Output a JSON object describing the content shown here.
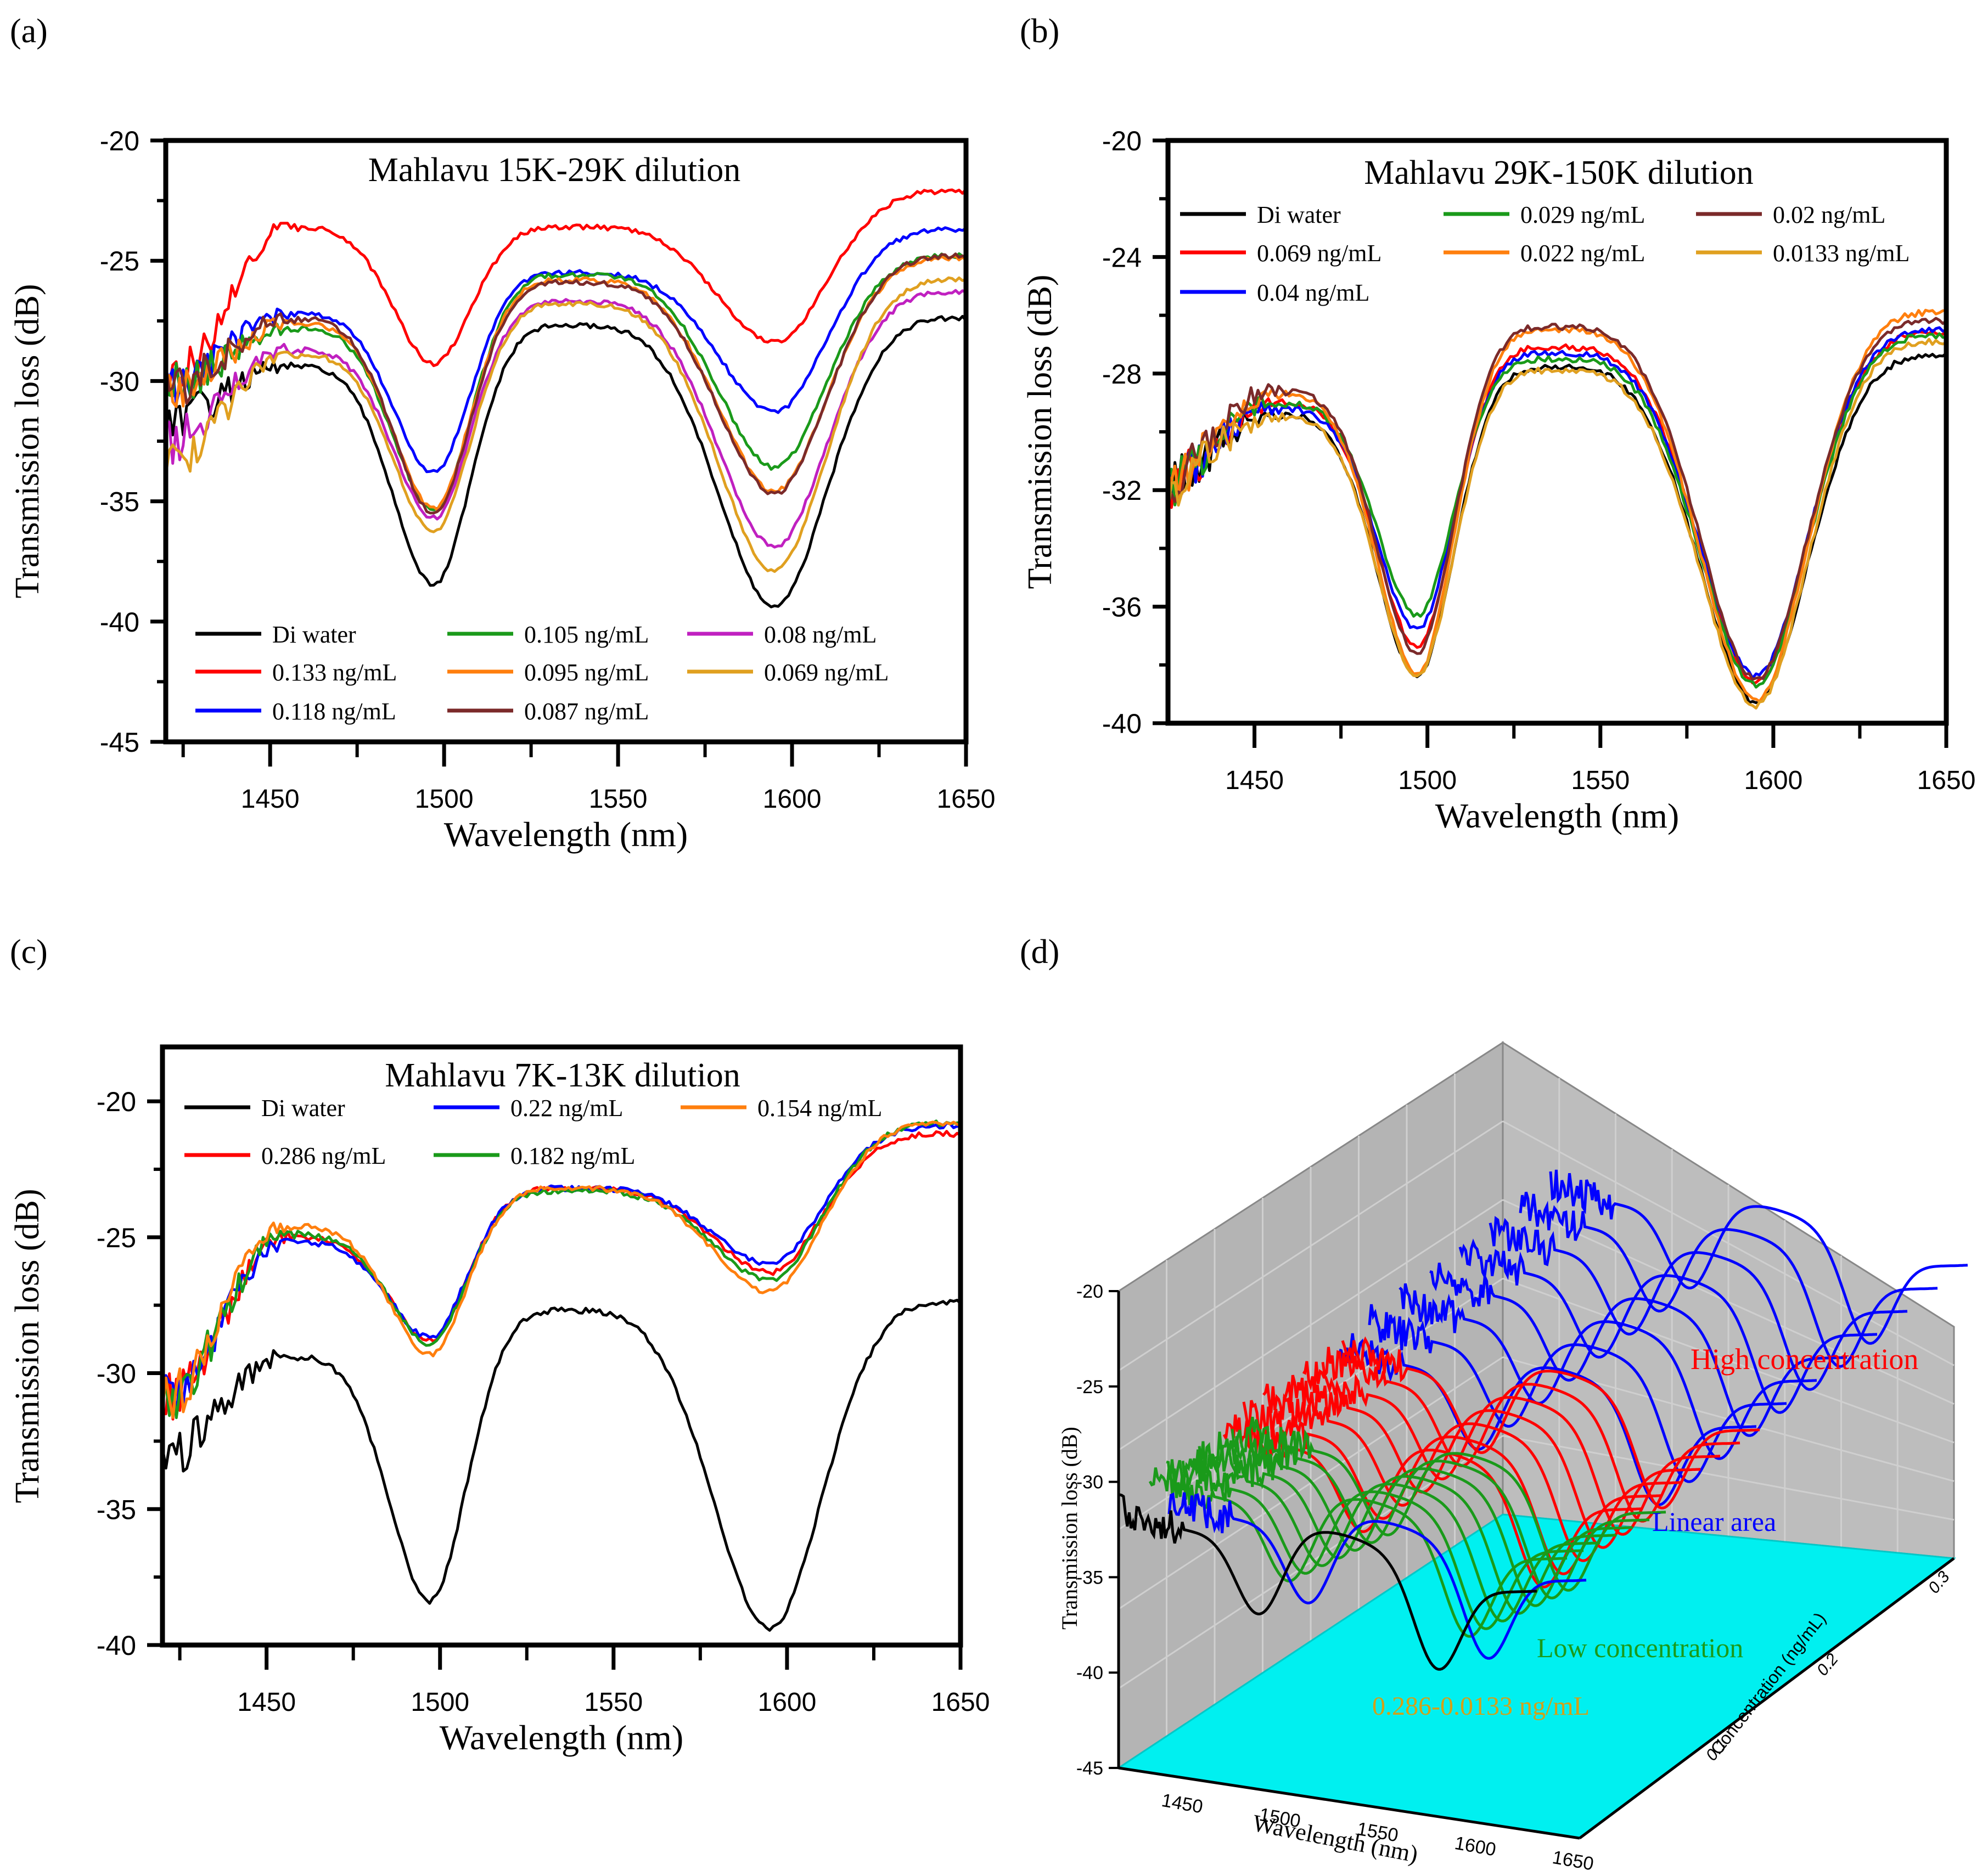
{
  "panel_labels": {
    "a": "(a)",
    "b": "(b)",
    "c": "(c)",
    "d": "(d)"
  },
  "chart_data": [
    {
      "panel": "(a)",
      "type": "line",
      "title": "Mahlavu 15K-29K dilution",
      "xlabel": "Wavelength (nm)",
      "ylabel": "Transmission loss (dB)",
      "xlim": [
        1420,
        1650
      ],
      "ylim": [
        -45,
        -20
      ],
      "xticks": [
        "1450",
        "1500",
        "1550",
        "1600",
        "1650"
      ],
      "yticks": [
        "-20",
        "-25",
        "-30",
        "-35",
        "-40",
        "-45"
      ],
      "series": [
        {
          "name": "Di water",
          "color": "#000000",
          "start": -31.5,
          "p1": -29.4,
          "d1": -38.5,
          "p2": -27.7,
          "d2": -39.4,
          "end": -27.4
        },
        {
          "name": "0.133 ng/mL",
          "color": "#ff0000",
          "start": -30.0,
          "p1": -23.6,
          "d1": -29.3,
          "p2": -23.6,
          "d2": -28.4,
          "end": -22.1
        },
        {
          "name": "0.118 ng/mL",
          "color": "#0000ff",
          "start": -30.2,
          "p1": -27.2,
          "d1": -33.8,
          "p2": -25.5,
          "d2": -31.3,
          "end": -23.7
        },
        {
          "name": "0.105 ng/mL",
          "color": "#1a9a1a",
          "start": -30.2,
          "p1": -27.8,
          "d1": -35.4,
          "p2": -25.6,
          "d2": -33.6,
          "end": -24.8
        },
        {
          "name": "0.095 ng/mL",
          "color": "#ff7f0e",
          "start": -30.5,
          "p1": -27.6,
          "d1": -35.3,
          "p2": -25.8,
          "d2": -34.6,
          "end": -24.9
        },
        {
          "name": "0.087 ng/mL",
          "color": "#7b2a2a",
          "start": -30.3,
          "p1": -27.4,
          "d1": -35.5,
          "p2": -25.9,
          "d2": -34.7,
          "end": -24.8
        },
        {
          "name": "0.08 ng/mL",
          "color": "#c020c0",
          "start": -32.5,
          "p1": -28.7,
          "d1": -35.7,
          "p2": -26.7,
          "d2": -36.9,
          "end": -26.3
        },
        {
          "name": "0.069 ng/mL",
          "color": "#e0a020",
          "start": -33.5,
          "p1": -28.9,
          "d1": -36.3,
          "p2": -26.8,
          "d2": -37.9,
          "end": -25.8
        }
      ]
    },
    {
      "panel": "(b)",
      "type": "line",
      "title": "Mahlavu 29K-150K dilution",
      "xlabel": "Wavelength (nm)",
      "ylabel": "Transmission loss (dB)",
      "xlim": [
        1425,
        1650
      ],
      "ylim": [
        -40,
        -20
      ],
      "xticks": [
        "1450",
        "1500",
        "1550",
        "1600",
        "1650"
      ],
      "yticks": [
        "-20",
        "-24",
        "-28",
        "-32",
        "-36",
        "-40"
      ],
      "series": [
        {
          "name": "Di water",
          "color": "#000000",
          "start": -32.0,
          "p1": -29.4,
          "d1": -38.4,
          "p2": -27.8,
          "d2": -39.3,
          "end": -27.4
        },
        {
          "name": "0.069 ng/mL",
          "color": "#ff0000",
          "start": -32.0,
          "p1": -29.0,
          "d1": -37.4,
          "p2": -27.1,
          "d2": -38.6,
          "end": -26.6
        },
        {
          "name": "0.04 ng/mL",
          "color": "#0000ff",
          "start": -32.0,
          "p1": -29.2,
          "d1": -36.8,
          "p2": -27.3,
          "d2": -38.4,
          "end": -26.5
        },
        {
          "name": "0.029 ng/mL",
          "color": "#1a9a1a",
          "start": -32.0,
          "p1": -29.0,
          "d1": -36.3,
          "p2": -27.5,
          "d2": -38.7,
          "end": -26.7
        },
        {
          "name": "0.022 ng/mL",
          "color": "#ff7f0e",
          "start": -32.0,
          "p1": -28.7,
          "d1": -38.3,
          "p2": -26.5,
          "d2": -39.2,
          "end": -25.9
        },
        {
          "name": "0.02 ng/mL",
          "color": "#7b2a2a",
          "start": -32.0,
          "p1": -28.6,
          "d1": -37.6,
          "p2": -26.4,
          "d2": -38.5,
          "end": -26.2
        },
        {
          "name": "0.0133 ng/mL",
          "color": "#e0a020",
          "start": -32.0,
          "p1": -29.5,
          "d1": -38.4,
          "p2": -27.9,
          "d2": -39.4,
          "end": -26.9
        }
      ]
    },
    {
      "panel": "(c)",
      "type": "line",
      "title": "Mahlavu 7K-13K dilution",
      "xlabel": "Wavelength (nm)",
      "ylabel": "Transmission loss (dB)",
      "xlim": [
        1420,
        1650
      ],
      "ylim": [
        -40,
        -18
      ],
      "xticks": [
        "1450",
        "1500",
        "1550",
        "1600",
        "1650"
      ],
      "yticks": [
        "-20",
        "-25",
        "-30",
        "-35",
        "-40"
      ],
      "series": [
        {
          "name": "Di water",
          "color": "#000000",
          "start": -33.0,
          "p1": -29.4,
          "d1": -38.4,
          "p2": -27.7,
          "d2": -39.4,
          "end": -27.4
        },
        {
          "name": "0.286 ng/mL",
          "color": "#ff0000",
          "start": -31.0,
          "p1": -25.0,
          "d1": -28.8,
          "p2": -23.2,
          "d2": -26.3,
          "end": -21.2
        },
        {
          "name": "0.22 ng/mL",
          "color": "#0000ff",
          "start": -31.0,
          "p1": -25.2,
          "d1": -28.7,
          "p2": -23.2,
          "d2": -26.0,
          "end": -20.9
        },
        {
          "name": "0.182 ng/mL",
          "color": "#1a9a1a",
          "start": -31.0,
          "p1": -24.9,
          "d1": -28.9,
          "p2": -23.3,
          "d2": -26.6,
          "end": -20.8
        },
        {
          "name": "0.154 ng/mL",
          "color": "#ff7f0e",
          "start": -31.0,
          "p1": -24.6,
          "d1": -29.3,
          "p2": -23.2,
          "d2": -27.0,
          "end": -20.8
        }
      ]
    },
    {
      "panel": "(d)",
      "type": "line",
      "chart_style": "3d-waterfall",
      "xlabel": "Wavelength (nm)",
      "ylabel": "Concentration (ng/mL)",
      "zlabel": "Transmission loss (dB)",
      "xticks": [
        "1450",
        "1500",
        "1550",
        "1600",
        "1650"
      ],
      "yticks": [
        "0.1",
        "0.2",
        "0.3"
      ],
      "zticks": [
        "-20",
        "-25",
        "-30",
        "-35",
        "-40",
        "-45"
      ],
      "annotations": [
        {
          "text": "High concentration",
          "color": "#ff0000"
        },
        {
          "text": "Linear area",
          "color": "#0000ff"
        },
        {
          "text": "Low concentration",
          "color": "#1a9a1a"
        },
        {
          "text": "0.286-0.0133 ng/mL",
          "color": "#d4a017"
        }
      ],
      "groups": [
        {
          "name": "Di water",
          "color": "#000000",
          "count": 1
        },
        {
          "name": "Linear area",
          "color": "#0000ff",
          "count": 8
        },
        {
          "name": "High concentration",
          "color": "#ff0000",
          "count": 7
        },
        {
          "name": "Low concentration",
          "color": "#1a9a1a",
          "count": 7
        }
      ]
    }
  ]
}
